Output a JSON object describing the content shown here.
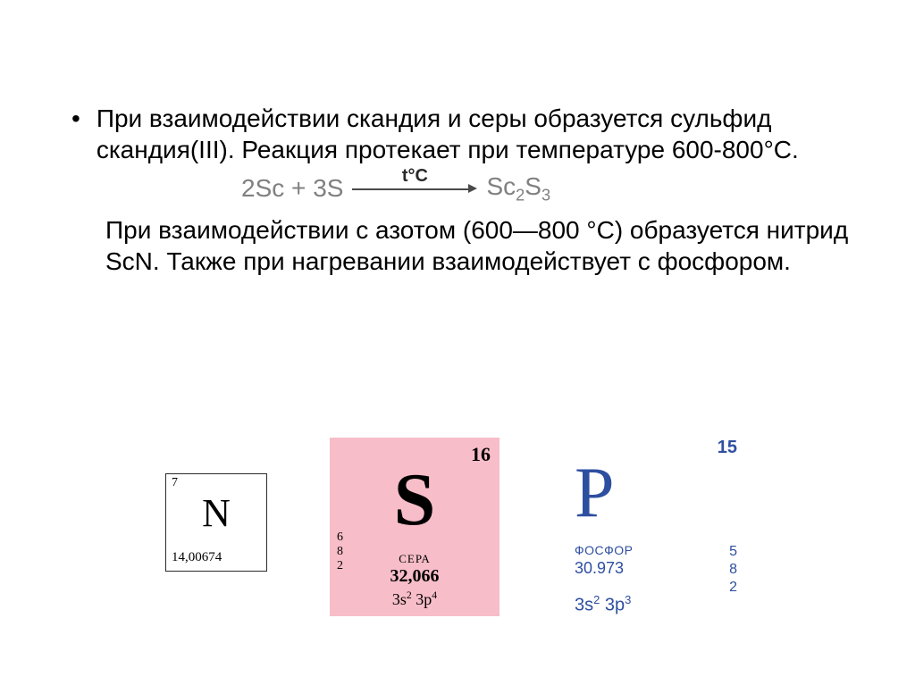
{
  "text": {
    "para1": "При взаимодействии скандия и серы образуется сульфид скандия(III). Реакция протекает при температуре 600-800°С.",
    "para2": "При взаимодействии с азотом (600—800 °С) образуется нитрид ScN. Также при нагревании взаимодействует с фосфором."
  },
  "equation": {
    "lhs_coef1": "2",
    "lhs_el1": "Sc",
    "plus": " + ",
    "lhs_coef2": "3",
    "lhs_el2": "S",
    "arrow_label": "t°C",
    "rhs_el": "Sc",
    "rhs_sub1": "2",
    "rhs_el2": "S",
    "rhs_sub2": "3",
    "color": "#808080"
  },
  "cards": {
    "nitrogen": {
      "number": "7",
      "symbol": "N",
      "mass": "14,00674",
      "border_color": "#2a2a2a",
      "bg": "#ffffff"
    },
    "sulfur": {
      "number": "16",
      "symbol": "S",
      "name": "СЕРА",
      "mass": "32,066",
      "config_base1": "3s",
      "config_sup1": "2",
      "config_sep": " ",
      "config_base2": "3p",
      "config_sup2": "4",
      "shells": [
        "6",
        "8",
        "2"
      ],
      "bg": "#f7bdc8"
    },
    "phosphorus": {
      "number": "15",
      "symbol": "P",
      "name": "ФОСФОР",
      "mass": "30.973",
      "config_base1": "3s",
      "config_sup1": "2",
      "config_sep": " ",
      "config_base2": "3p",
      "config_sup2": "3",
      "shells": [
        "5",
        "8",
        "2"
      ],
      "text_color": "#2e4fa0",
      "bg": "#ffffff"
    }
  },
  "style": {
    "body_font_size": 28,
    "eq_font_size": 28,
    "bg": "#ffffff"
  }
}
